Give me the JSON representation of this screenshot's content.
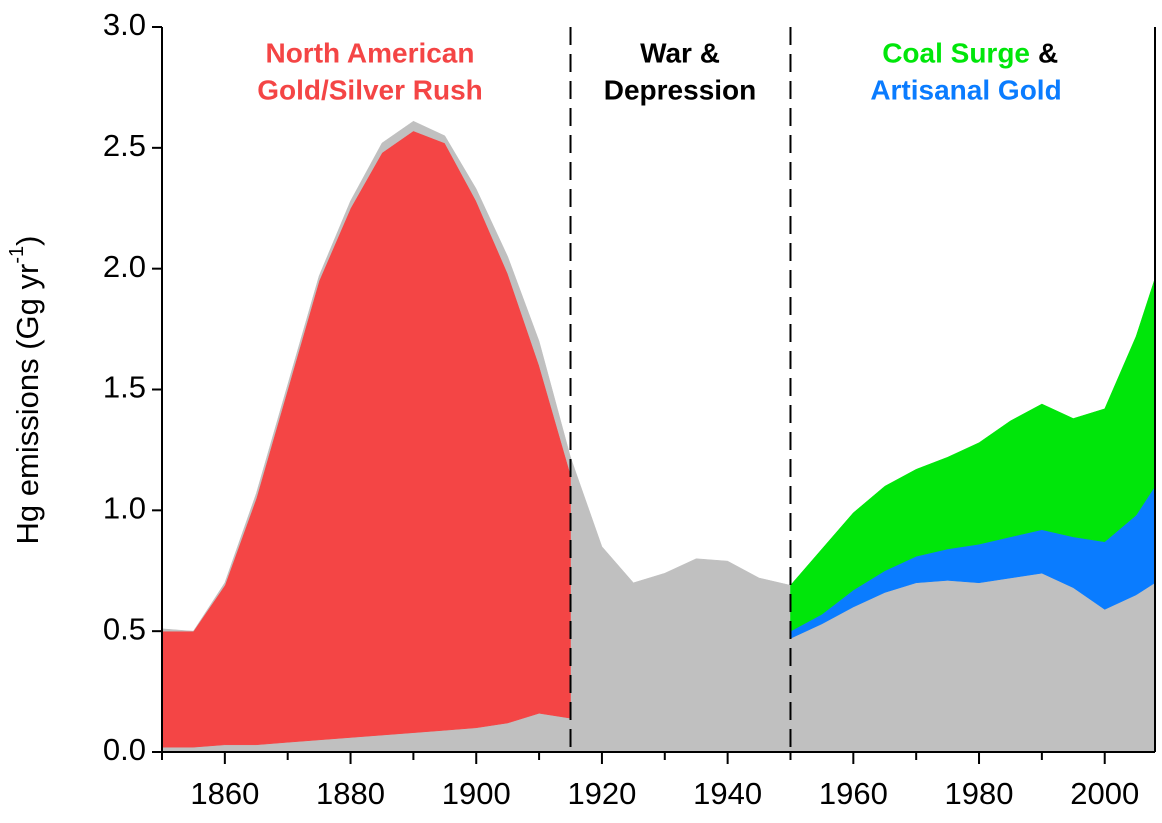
{
  "chart_data": {
    "type": "stacked_area",
    "ylabel": "Hg emissions (Gg yr",
    "ylabel_sup": "-1",
    "ylabel_end": ")",
    "x": [
      1850,
      1855,
      1860,
      1865,
      1870,
      1875,
      1880,
      1885,
      1890,
      1895,
      1900,
      1905,
      1910,
      1915,
      1915,
      1920,
      1925,
      1930,
      1935,
      1940,
      1945,
      1950,
      1950,
      1955,
      1960,
      1965,
      1970,
      1975,
      1980,
      1985,
      1990,
      1995,
      2000,
      2005,
      2008
    ],
    "series": [
      {
        "color": "#c0c0c0",
        "values": [
          0.02,
          0.02,
          0.03,
          0.03,
          0.04,
          0.05,
          0.06,
          0.07,
          0.08,
          0.09,
          0.1,
          0.12,
          0.16,
          0.14,
          1.22,
          0.85,
          0.7,
          0.74,
          0.8,
          0.79,
          0.72,
          0.69,
          0.47,
          0.53,
          0.6,
          0.66,
          0.7,
          0.71,
          0.7,
          0.72,
          0.74,
          0.68,
          0.59,
          0.65,
          0.7
        ]
      },
      {
        "color": "#f44545",
        "values": [
          0.48,
          0.48,
          0.66,
          1.02,
          1.46,
          1.9,
          2.19,
          2.41,
          2.49,
          2.43,
          2.18,
          1.86,
          1.44,
          1.01,
          null,
          null,
          null,
          null,
          null,
          null,
          null,
          null,
          null,
          null,
          null,
          null,
          null,
          null,
          null,
          null,
          null,
          null,
          null,
          null,
          null
        ]
      },
      {
        "color": "#c0c0c0",
        "values": [
          0.01,
          0,
          0.01,
          0.02,
          0.02,
          0.02,
          0.03,
          0.04,
          0.04,
          0.03,
          0.05,
          0.07,
          0.1,
          0.07,
          null,
          null,
          null,
          null,
          null,
          null,
          null,
          null,
          null,
          null,
          null,
          null,
          null,
          null,
          null,
          null,
          null,
          null,
          null,
          null,
          null
        ]
      },
      {
        "color": "#0a7cff",
        "values": [
          null,
          null,
          null,
          null,
          null,
          null,
          null,
          null,
          null,
          null,
          null,
          null,
          null,
          null,
          null,
          null,
          null,
          null,
          null,
          null,
          null,
          null,
          0.03,
          0.04,
          0.07,
          0.09,
          0.11,
          0.13,
          0.16,
          0.17,
          0.18,
          0.21,
          0.28,
          0.33,
          0.4
        ]
      },
      {
        "color": "#00e60a",
        "values": [
          null,
          null,
          null,
          null,
          null,
          null,
          null,
          null,
          null,
          null,
          null,
          null,
          null,
          null,
          null,
          null,
          null,
          null,
          null,
          null,
          null,
          null,
          0.19,
          0.27,
          0.32,
          0.35,
          0.36,
          0.38,
          0.42,
          0.48,
          0.52,
          0.49,
          0.55,
          0.74,
          0.86
        ]
      }
    ],
    "xlim": [
      1850,
      2008
    ],
    "ylim": [
      0,
      3
    ],
    "xticks": [
      1860,
      1880,
      1900,
      1920,
      1940,
      1960,
      1980,
      2000
    ],
    "xticks_minor": [
      1850,
      1870,
      1890,
      1910,
      1930,
      1950,
      1970,
      1990
    ],
    "yticks": [
      {
        "value": 0,
        "label": "0.0"
      },
      0.5,
      {
        "value": 1,
        "label": "1.0"
      },
      1.5,
      {
        "value": 2,
        "label": "2.0"
      },
      2.5,
      {
        "value": 3,
        "label": "3.0"
      }
    ],
    "vlines": [
      1915,
      1950
    ],
    "annotations": [
      {
        "text": "North American",
        "color": "#f44545"
      },
      {
        "text": "Gold/Silver Rush",
        "color": "#f44545"
      },
      {
        "text": "War &",
        "color": "#000000"
      },
      {
        "text": "Depression",
        "color": "#000000"
      },
      {
        "text": "Coal Surge",
        "color": "#00e60a"
      },
      {
        "text": "&",
        "color": "#000000"
      },
      {
        "text": "Artisanal Gold",
        "color": "#0a7cff"
      }
    ]
  }
}
